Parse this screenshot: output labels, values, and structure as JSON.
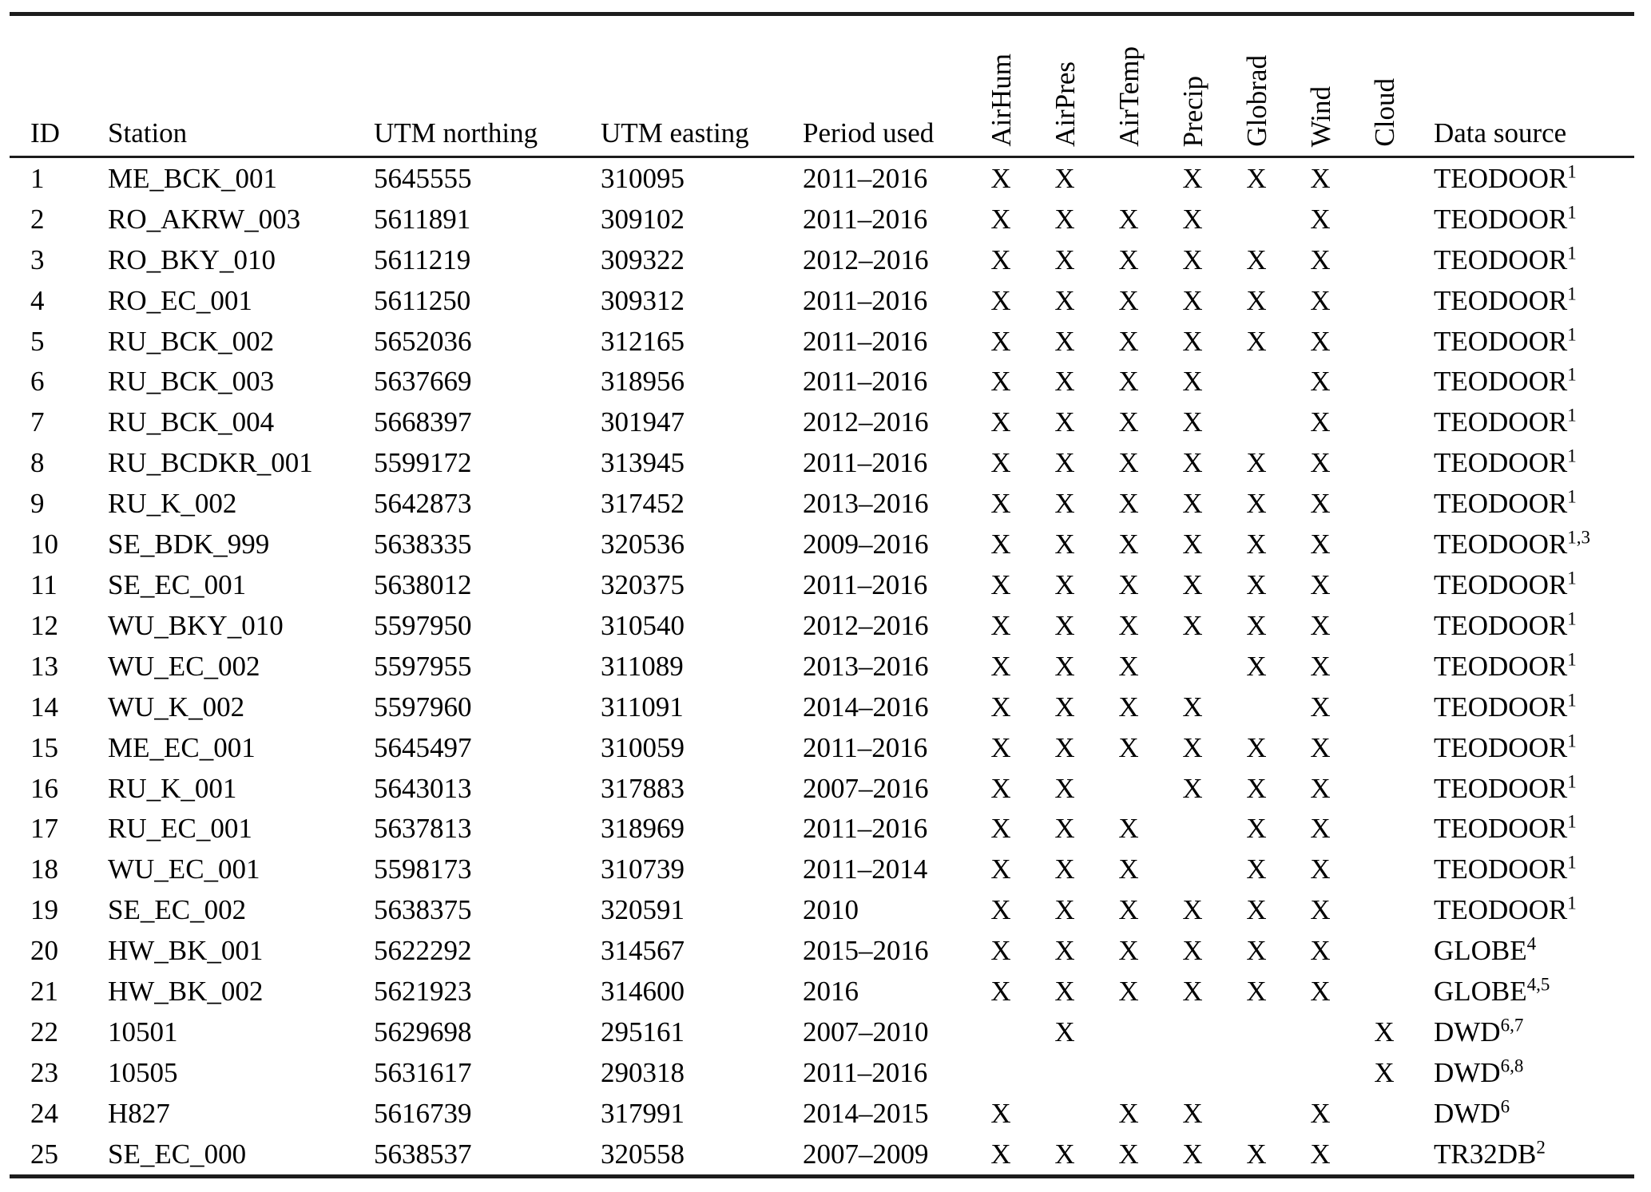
{
  "table": {
    "columns": [
      "ID",
      "Station",
      "UTM northing",
      "UTM easting",
      "Period used"
    ],
    "variable_columns": [
      "AirHum",
      "AirPres",
      "AirTemp",
      "Precip",
      "Globrad",
      "Wind",
      "Cloud"
    ],
    "data_source_column": "Data source",
    "mark": "X",
    "rows": [
      {
        "id": "1",
        "station": "ME_BCK_001",
        "utm_northing": "5645555",
        "utm_easting": "310095",
        "period": "2011–2016",
        "vars": [
          "X",
          "X",
          "",
          "X",
          "X",
          "X",
          ""
        ],
        "source": "TEODOOR",
        "sup": "1"
      },
      {
        "id": "2",
        "station": "RO_AKRW_003",
        "utm_northing": "5611891",
        "utm_easting": "309102",
        "period": "2011–2016",
        "vars": [
          "X",
          "X",
          "X",
          "X",
          "",
          "X",
          ""
        ],
        "source": "TEODOOR",
        "sup": "1"
      },
      {
        "id": "3",
        "station": "RO_BKY_010",
        "utm_northing": "5611219",
        "utm_easting": "309322",
        "period": "2012–2016",
        "vars": [
          "X",
          "X",
          "X",
          "X",
          "X",
          "X",
          ""
        ],
        "source": "TEODOOR",
        "sup": "1"
      },
      {
        "id": "4",
        "station": "RO_EC_001",
        "utm_northing": "5611250",
        "utm_easting": "309312",
        "period": "2011–2016",
        "vars": [
          "X",
          "X",
          "X",
          "X",
          "X",
          "X",
          ""
        ],
        "source": "TEODOOR",
        "sup": "1"
      },
      {
        "id": "5",
        "station": "RU_BCK_002",
        "utm_northing": "5652036",
        "utm_easting": "312165",
        "period": "2011–2016",
        "vars": [
          "X",
          "X",
          "X",
          "X",
          "X",
          "X",
          ""
        ],
        "source": "TEODOOR",
        "sup": "1"
      },
      {
        "id": "6",
        "station": "RU_BCK_003",
        "utm_northing": "5637669",
        "utm_easting": "318956",
        "period": "2011–2016",
        "vars": [
          "X",
          "X",
          "X",
          "X",
          "",
          "X",
          ""
        ],
        "source": "TEODOOR",
        "sup": "1"
      },
      {
        "id": "7",
        "station": "RU_BCK_004",
        "utm_northing": "5668397",
        "utm_easting": "301947",
        "period": "2012–2016",
        "vars": [
          "X",
          "X",
          "X",
          "X",
          "",
          "X",
          ""
        ],
        "source": "TEODOOR",
        "sup": "1"
      },
      {
        "id": "8",
        "station": "RU_BCDKR_001",
        "utm_northing": "5599172",
        "utm_easting": "313945",
        "period": "2011–2016",
        "vars": [
          "X",
          "X",
          "X",
          "X",
          "X",
          "X",
          ""
        ],
        "source": "TEODOOR",
        "sup": "1"
      },
      {
        "id": "9",
        "station": "RU_K_002",
        "utm_northing": "5642873",
        "utm_easting": "317452",
        "period": "2013–2016",
        "vars": [
          "X",
          "X",
          "X",
          "X",
          "X",
          "X",
          ""
        ],
        "source": "TEODOOR",
        "sup": "1"
      },
      {
        "id": "10",
        "station": "SE_BDK_999",
        "utm_northing": "5638335",
        "utm_easting": "320536",
        "period": "2009–2016",
        "vars": [
          "X",
          "X",
          "X",
          "X",
          "X",
          "X",
          ""
        ],
        "source": "TEODOOR",
        "sup": "1,3"
      },
      {
        "id": "11",
        "station": "SE_EC_001",
        "utm_northing": "5638012",
        "utm_easting": "320375",
        "period": "2011–2016",
        "vars": [
          "X",
          "X",
          "X",
          "X",
          "X",
          "X",
          ""
        ],
        "source": "TEODOOR",
        "sup": "1"
      },
      {
        "id": "12",
        "station": "WU_BKY_010",
        "utm_northing": "5597950",
        "utm_easting": "310540",
        "period": "2012–2016",
        "vars": [
          "X",
          "X",
          "X",
          "X",
          "X",
          "X",
          ""
        ],
        "source": "TEODOOR",
        "sup": "1"
      },
      {
        "id": "13",
        "station": "WU_EC_002",
        "utm_northing": "5597955",
        "utm_easting": "311089",
        "period": "2013–2016",
        "vars": [
          "X",
          "X",
          "X",
          "",
          "X",
          "X",
          ""
        ],
        "source": "TEODOOR",
        "sup": "1"
      },
      {
        "id": "14",
        "station": "WU_K_002",
        "utm_northing": "5597960",
        "utm_easting": "311091",
        "period": "2014–2016",
        "vars": [
          "X",
          "X",
          "X",
          "X",
          "",
          "X",
          ""
        ],
        "source": "TEODOOR",
        "sup": "1"
      },
      {
        "id": "15",
        "station": "ME_EC_001",
        "utm_northing": "5645497",
        "utm_easting": "310059",
        "period": "2011–2016",
        "vars": [
          "X",
          "X",
          "X",
          "X",
          "X",
          "X",
          ""
        ],
        "source": "TEODOOR",
        "sup": "1"
      },
      {
        "id": "16",
        "station": "RU_K_001",
        "utm_northing": "5643013",
        "utm_easting": "317883",
        "period": "2007–2016",
        "vars": [
          "X",
          "X",
          "",
          "X",
          "X",
          "X",
          ""
        ],
        "source": "TEODOOR",
        "sup": "1"
      },
      {
        "id": "17",
        "station": "RU_EC_001",
        "utm_northing": "5637813",
        "utm_easting": "318969",
        "period": "2011–2016",
        "vars": [
          "X",
          "X",
          "X",
          "",
          "X",
          "X",
          ""
        ],
        "source": "TEODOOR",
        "sup": "1"
      },
      {
        "id": "18",
        "station": "WU_EC_001",
        "utm_northing": "5598173",
        "utm_easting": "310739",
        "period": "2011–2014",
        "vars": [
          "X",
          "X",
          "X",
          "",
          "X",
          "X",
          ""
        ],
        "source": "TEODOOR",
        "sup": "1"
      },
      {
        "id": "19",
        "station": "SE_EC_002",
        "utm_northing": "5638375",
        "utm_easting": "320591",
        "period": "2010",
        "vars": [
          "X",
          "X",
          "X",
          "X",
          "X",
          "X",
          ""
        ],
        "source": "TEODOOR",
        "sup": "1"
      },
      {
        "id": "20",
        "station": "HW_BK_001",
        "utm_northing": "5622292",
        "utm_easting": "314567",
        "period": "2015–2016",
        "vars": [
          "X",
          "X",
          "X",
          "X",
          "X",
          "X",
          ""
        ],
        "source": "GLOBE",
        "sup": "4"
      },
      {
        "id": "21",
        "station": "HW_BK_002",
        "utm_northing": "5621923",
        "utm_easting": "314600",
        "period": "2016",
        "vars": [
          "X",
          "X",
          "X",
          "X",
          "X",
          "X",
          ""
        ],
        "source": "GLOBE",
        "sup": "4,5"
      },
      {
        "id": "22",
        "station": "10501",
        "utm_northing": "5629698",
        "utm_easting": "295161",
        "period": "2007–2010",
        "vars": [
          "",
          "X",
          "",
          "",
          "",
          "",
          "X"
        ],
        "source": "DWD",
        "sup": "6,7"
      },
      {
        "id": "23",
        "station": "10505",
        "utm_northing": "5631617",
        "utm_easting": "290318",
        "period": "2011–2016",
        "vars": [
          "",
          "",
          "",
          "",
          "",
          "",
          "X"
        ],
        "source": "DWD",
        "sup": "6,8"
      },
      {
        "id": "24",
        "station": "H827",
        "utm_northing": "5616739",
        "utm_easting": "317991",
        "period": "2014–2015",
        "vars": [
          "X",
          "",
          "X",
          "X",
          "",
          "X",
          ""
        ],
        "source": "DWD",
        "sup": "6"
      },
      {
        "id": "25",
        "station": "SE_EC_000",
        "utm_northing": "5638537",
        "utm_easting": "320558",
        "period": "2007–2009",
        "vars": [
          "X",
          "X",
          "X",
          "X",
          "X",
          "X",
          ""
        ],
        "source": "TR32DB",
        "sup": "2"
      }
    ]
  }
}
